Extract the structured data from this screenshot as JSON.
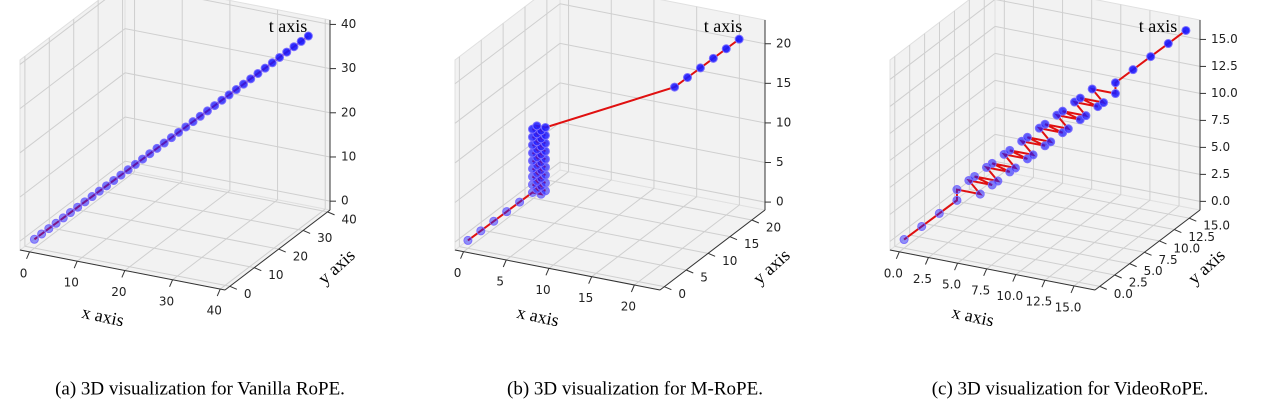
{
  "chart_data": [
    {
      "type": "scatter3d",
      "caption": "(a) 3D visualization for Vanilla RoPE.",
      "xlabel": "x axis",
      "ylabel": "y axis",
      "tlabel": "t axis",
      "color": "#1a1aff",
      "line_color": "#e01010",
      "xlim": [
        -2,
        41
      ],
      "ylim": [
        -2,
        41
      ],
      "tlim": [
        -2,
        41
      ],
      "xticks": [
        0,
        10,
        20,
        30,
        40
      ],
      "yticks": [
        0,
        10,
        20,
        30,
        40
      ],
      "tticks": [
        0,
        10,
        20,
        30,
        40
      ],
      "x": [
        0,
        1,
        2,
        3,
        4,
        5,
        6,
        7,
        8,
        9,
        10,
        11,
        12,
        13,
        14,
        15,
        16,
        17,
        18,
        19,
        20,
        21,
        22,
        23,
        24,
        25,
        26,
        27,
        28,
        29,
        30,
        31,
        32,
        33,
        34,
        35,
        36,
        37,
        38
      ],
      "y": [
        0,
        1,
        2,
        3,
        4,
        5,
        6,
        7,
        8,
        9,
        10,
        11,
        12,
        13,
        14,
        15,
        16,
        17,
        18,
        19,
        20,
        21,
        22,
        23,
        24,
        25,
        26,
        27,
        28,
        29,
        30,
        31,
        32,
        33,
        34,
        35,
        36,
        37,
        38
      ],
      "t": [
        0,
        1,
        2,
        3,
        4,
        5,
        6,
        7,
        8,
        9,
        10,
        11,
        12,
        13,
        14,
        15,
        16,
        17,
        18,
        19,
        20,
        21,
        22,
        23,
        24,
        25,
        26,
        27,
        28,
        29,
        30,
        31,
        32,
        33,
        34,
        35,
        36,
        37,
        38
      ]
    },
    {
      "type": "scatter3d",
      "caption": "(b) 3D visualization for M-RoPE.",
      "xlabel": "x axis",
      "ylabel": "y axis",
      "tlabel": "t axis",
      "color": "#1a1aff",
      "line_color": "#e01010",
      "xlim": [
        -1,
        23
      ],
      "ylim": [
        -1,
        23
      ],
      "tlim": [
        -1,
        23
      ],
      "xticks": [
        0,
        5,
        10,
        15,
        20
      ],
      "yticks": [
        0,
        5,
        10,
        15,
        20
      ],
      "tticks": [
        0,
        5,
        10,
        15,
        20
      ],
      "x": [
        0,
        1,
        2,
        3,
        4,
        5,
        6,
        5,
        6,
        5,
        6,
        5,
        6,
        5,
        6,
        5,
        6,
        5,
        6,
        5,
        6,
        5,
        6,
        5,
        6,
        5,
        6,
        5,
        6,
        5,
        6,
        5,
        6,
        5,
        6,
        5,
        6,
        5,
        6,
        5,
        6,
        16,
        17,
        18,
        19,
        20,
        21
      ],
      "y": [
        0,
        1,
        2,
        3,
        4,
        5,
        5,
        6,
        6,
        5,
        5,
        6,
        6,
        5,
        5,
        6,
        6,
        5,
        5,
        6,
        6,
        5,
        5,
        6,
        6,
        5,
        5,
        6,
        6,
        5,
        5,
        6,
        6,
        5,
        5,
        6,
        6,
        5,
        5,
        6,
        6,
        16,
        17,
        18,
        19,
        20,
        21
      ],
      "t": [
        0,
        1,
        2,
        3,
        4,
        5,
        5,
        5,
        5,
        6,
        6,
        6,
        6,
        7,
        7,
        7,
        7,
        8,
        8,
        8,
        8,
        9,
        9,
        9,
        9,
        10,
        10,
        10,
        10,
        11,
        11,
        11,
        11,
        12,
        12,
        12,
        12,
        13,
        13,
        13,
        13,
        16,
        17,
        18,
        19,
        20,
        21
      ]
    },
    {
      "type": "scatter3d",
      "caption": "(c) 3D visualization for VideoRoPE.",
      "xlabel": "x axis",
      "ylabel": "y axis",
      "tlabel": "t axis",
      "color": "#1a1aff",
      "line_color": "#e01010",
      "xlim": [
        -0.8,
        16.8
      ],
      "ylim": [
        -0.8,
        16.8
      ],
      "tlim": [
        -0.8,
        16.8
      ],
      "xticks": [
        {
          "value": 0,
          "label": "0.0"
        },
        2.5,
        {
          "value": 5,
          "label": "5.0"
        },
        7.5,
        {
          "value": 10,
          "label": "10.0"
        },
        12.5,
        {
          "value": 15,
          "label": "15.0"
        }
      ],
      "yticks": [
        {
          "value": 0,
          "label": "0.0"
        },
        2.5,
        {
          "value": 5,
          "label": "5.0"
        },
        7.5,
        {
          "value": 10,
          "label": "10.0"
        },
        12.5,
        {
          "value": 15,
          "label": "15.0"
        }
      ],
      "tticks": [
        {
          "value": 0,
          "label": "0.0"
        },
        2.5,
        {
          "value": 5,
          "label": "5.0"
        },
        7.5,
        {
          "value": 10,
          "label": "10.0"
        },
        12.5,
        {
          "value": 15,
          "label": "15.0"
        }
      ],
      "x": [
        0,
        1,
        2,
        3,
        3,
        5,
        3,
        5,
        4,
        6,
        4,
        6,
        5,
        7,
        5,
        7,
        6,
        8,
        6,
        8,
        7,
        9,
        7,
        9,
        8,
        10,
        8,
        10,
        9,
        11,
        9,
        11,
        10,
        12,
        10,
        12,
        12,
        13,
        14,
        15,
        16
      ],
      "y": [
        0,
        1,
        2,
        3,
        3,
        3,
        5,
        5,
        4,
        4,
        6,
        6,
        5,
        5,
        7,
        7,
        6,
        6,
        8,
        8,
        7,
        7,
        9,
        9,
        8,
        8,
        10,
        10,
        9,
        9,
        11,
        11,
        10,
        10,
        12,
        12,
        12,
        13,
        14,
        15,
        16
      ],
      "t": [
        0,
        1,
        2,
        3,
        4,
        4,
        4,
        4,
        5,
        5,
        5,
        5,
        6,
        6,
        6,
        6,
        7,
        7,
        7,
        7,
        8,
        8,
        8,
        8,
        9,
        9,
        9,
        9,
        10,
        10,
        10,
        10,
        11,
        11,
        11,
        11,
        12,
        13,
        14,
        15,
        16
      ]
    }
  ]
}
